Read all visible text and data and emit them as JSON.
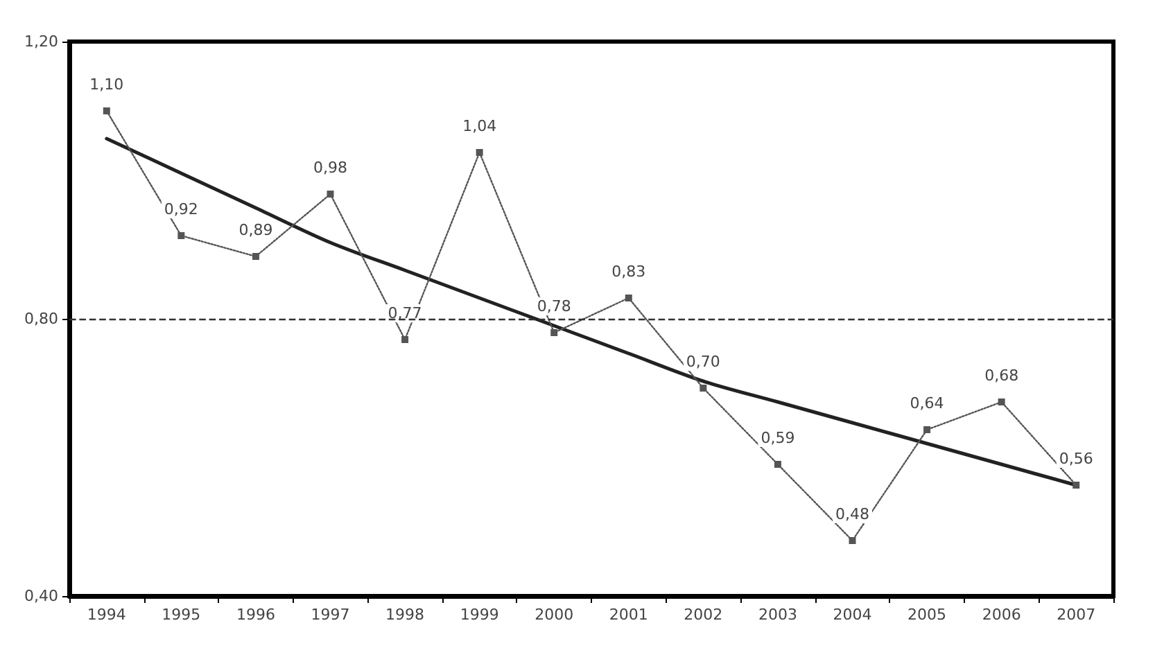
{
  "chart_data": {
    "type": "line",
    "categories": [
      "1994",
      "1995",
      "1996",
      "1997",
      "1998",
      "1999",
      "2000",
      "2001",
      "2002",
      "2003",
      "2004",
      "2005",
      "2006",
      "2007"
    ],
    "series": [
      {
        "color": "#555555",
        "values": [
          1.1,
          0.92,
          0.89,
          0.98,
          0.77,
          1.04,
          0.78,
          0.83,
          0.7,
          0.59,
          0.48,
          0.64,
          0.68,
          0.56
        ],
        "value_labels": [
          "1,10",
          "0,92",
          "0,89",
          "0,98",
          "0,77",
          "1,04",
          "0,78",
          "0,83",
          "0,70",
          "0,59",
          "0,48",
          "0,64",
          "0,68",
          "0,56"
        ],
        "marker": "square",
        "line_style": "dotted"
      },
      {
        "color": "#222222",
        "values": [
          1.06,
          1.01,
          0.96,
          0.91,
          0.87,
          0.83,
          0.79,
          0.75,
          0.71,
          0.68,
          0.65,
          0.62,
          0.59,
          0.56
        ],
        "marker": "none",
        "line_style": "solid"
      }
    ],
    "ylim": [
      0.4,
      1.2
    ],
    "yticks": [
      {
        "value": 0.4,
        "label": "0,40"
      },
      {
        "value": 0.8,
        "label": "0,80"
      },
      {
        "value": 1.2,
        "label": "1,20"
      }
    ],
    "ref_lines": [
      {
        "axis": "y",
        "value": 0.8,
        "line_style": "dashed",
        "color": "#333333"
      }
    ],
    "grid": false
  }
}
